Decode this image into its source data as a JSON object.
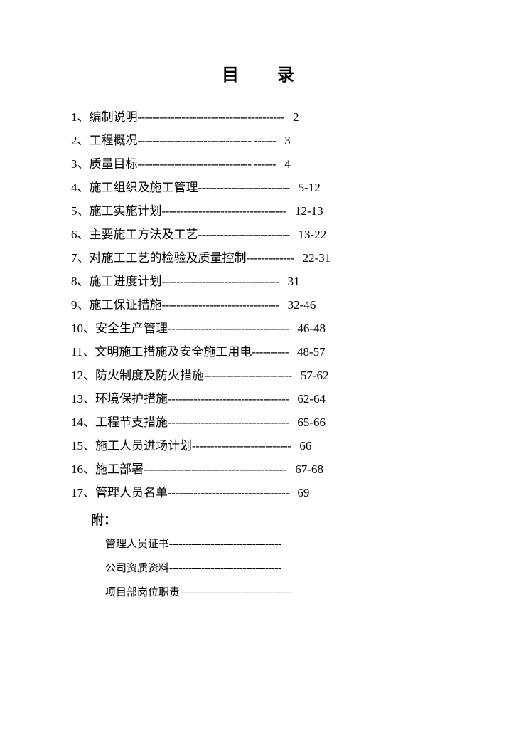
{
  "title": "目  录",
  "toc": [
    {
      "num": "1、",
      "label": "编制说明",
      "dashes": "----------------------------------------",
      "page": "2"
    },
    {
      "num": "2、",
      "label": "工程概况",
      "dashes": "------------------------------- ------",
      "page": "3"
    },
    {
      "num": "3、",
      "label": "质量目标",
      "dashes": "------------------------------- ------",
      "page": "4"
    },
    {
      "num": "4、",
      "label": "施工组织及施工管理",
      "dashes": "-------------------------",
      "page": "5-12"
    },
    {
      "num": "5、",
      "label": "施工实施计划",
      "dashes": "----------------------------------",
      "page": "12-13"
    },
    {
      "num": "6、",
      "label": "主要施工方法及工艺",
      "dashes": "-------------------------",
      "page": "13-22"
    },
    {
      "num": "7、",
      "label": "对施工工艺的检验及质量控制",
      "dashes": "-------------",
      "page": "22-31"
    },
    {
      "num": "8、",
      "label": "施工进度计划",
      "dashes": "--------------------------------",
      "page": "31"
    },
    {
      "num": "9、",
      "label": "施工保证措施",
      "dashes": "--------------------------------",
      "page": "32-46"
    },
    {
      "num": "10、",
      "label": "安全生产管理",
      "dashes": "---------------------------------",
      "page": "46-48"
    },
    {
      "num": "11、",
      "label": "文明施工措施及安全施工用电",
      "dashes": "----------",
      "page": "48-57"
    },
    {
      "num": "12、",
      "label": "防火制度及防火措施",
      "dashes": "------------------------",
      "page": " 57-62"
    },
    {
      "num": "13、",
      "label": "环境保护措施",
      "dashes": "---------------------------------",
      "page": "62-64"
    },
    {
      "num": "14、",
      "label": "工程节支措施",
      "dashes": "---------------------------------",
      "page": "65-66"
    },
    {
      "num": "15、",
      "label": "施工人员进场计划",
      "dashes": "---------------------------",
      "page": "66"
    },
    {
      "num": "16、",
      "label": "施工部署",
      "dashes": "---------------------------------------",
      "page": "67-68"
    },
    {
      "num": "17、",
      "label": "管理人员名单",
      "dashes": "---------------------------------",
      "page": "69"
    }
  ],
  "appendix_title": "附：",
  "appendix": [
    {
      "label": "管理人员证书",
      "dashes": "-----------------------------------"
    },
    {
      "label": "公司资质资料",
      "dashes": "-----------------------------------"
    },
    {
      "label": "项目部岗位职责",
      "dashes": "-----------------------------------"
    }
  ]
}
